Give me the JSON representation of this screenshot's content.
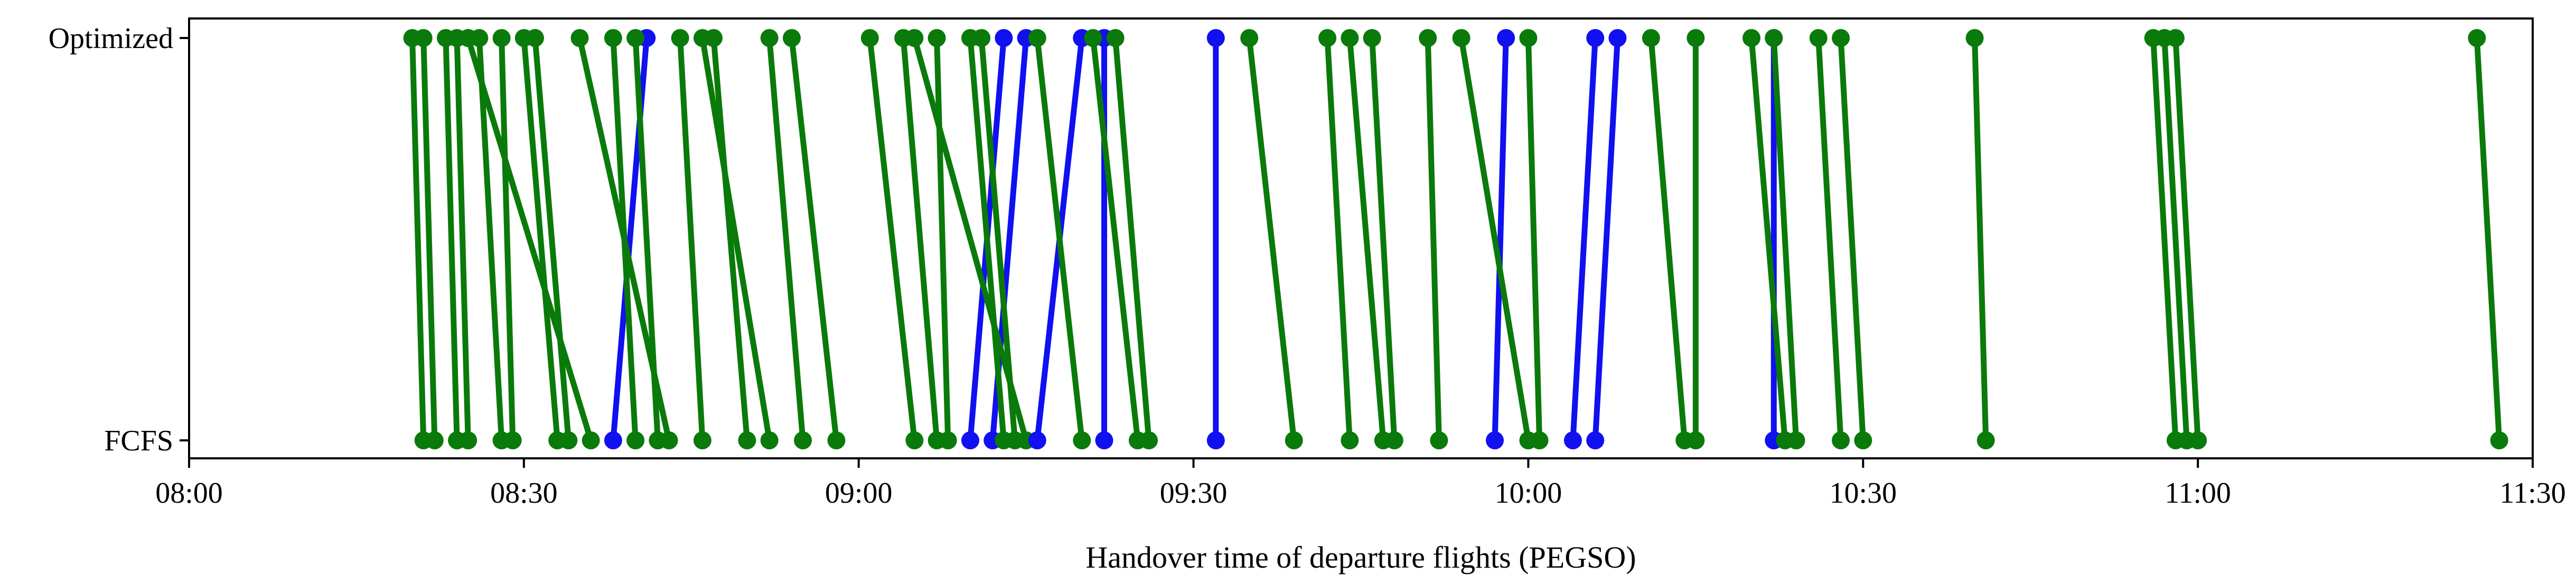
{
  "chart_data": {
    "type": "line",
    "title": "",
    "xlabel": "Handover time of departure flights (PEGSO)",
    "ylabel": "",
    "xlim": [
      "08:00",
      "11:30"
    ],
    "x_ticks": [
      "08:00",
      "08:30",
      "09:00",
      "09:30",
      "10:00",
      "10:30",
      "11:00",
      "11:30"
    ],
    "y_categories": [
      "FCFS",
      "Optimized"
    ],
    "grid": false,
    "legend": "none",
    "colors": {
      "unchanged_or_delayed": "#0a7a0a",
      "advanced": "#1010f0"
    },
    "note_encoding": "each flight is a segment from its FCFS handover time to its Optimized handover time; blue segments move earlier",
    "flights": [
      {
        "fcfs": "08:21",
        "optimized": "08:20",
        "color": "green"
      },
      {
        "fcfs": "08:22",
        "optimized": "08:21",
        "color": "green"
      },
      {
        "fcfs": "08:24",
        "optimized": "08:23",
        "color": "green"
      },
      {
        "fcfs": "08:25",
        "optimized": "08:24",
        "color": "green"
      },
      {
        "fcfs": "08:28",
        "optimized": "08:26",
        "color": "green"
      },
      {
        "fcfs": "08:29",
        "optimized": "08:28",
        "color": "green"
      },
      {
        "fcfs": "08:33",
        "optimized": "08:30",
        "color": "green"
      },
      {
        "fcfs": "08:34",
        "optimized": "08:31",
        "color": "green"
      },
      {
        "fcfs": "08:36",
        "optimized": "08:25",
        "color": "green"
      },
      {
        "fcfs": "08:38",
        "optimized": "08:41",
        "color": "blue"
      },
      {
        "fcfs": "08:40",
        "optimized": "08:38",
        "color": "green"
      },
      {
        "fcfs": "08:42",
        "optimized": "08:40",
        "color": "green"
      },
      {
        "fcfs": "08:43",
        "optimized": "08:35",
        "color": "green"
      },
      {
        "fcfs": "08:46",
        "optimized": "08:44",
        "color": "green"
      },
      {
        "fcfs": "08:50",
        "optimized": "08:47",
        "color": "green"
      },
      {
        "fcfs": "08:52",
        "optimized": "08:46",
        "color": "green"
      },
      {
        "fcfs": "08:55",
        "optimized": "08:52",
        "color": "green"
      },
      {
        "fcfs": "08:58",
        "optimized": "08:54",
        "color": "green"
      },
      {
        "fcfs": "09:05",
        "optimized": "09:01",
        "color": "green"
      },
      {
        "fcfs": "09:07",
        "optimized": "09:04",
        "color": "green"
      },
      {
        "fcfs": "09:08",
        "optimized": "09:07",
        "color": "green"
      },
      {
        "fcfs": "09:10",
        "optimized": "09:13",
        "color": "blue"
      },
      {
        "fcfs": "09:12",
        "optimized": "09:15",
        "color": "blue"
      },
      {
        "fcfs": "09:13",
        "optimized": "09:10",
        "color": "green"
      },
      {
        "fcfs": "09:14",
        "optimized": "09:11",
        "color": "green"
      },
      {
        "fcfs": "09:15",
        "optimized": "09:05",
        "color": "green"
      },
      {
        "fcfs": "09:16",
        "optimized": "09:20",
        "color": "blue"
      },
      {
        "fcfs": "09:20",
        "optimized": "09:16",
        "color": "green"
      },
      {
        "fcfs": "09:22",
        "optimized": "09:22",
        "color": "blue"
      },
      {
        "fcfs": "09:25",
        "optimized": "09:21",
        "color": "green"
      },
      {
        "fcfs": "09:26",
        "optimized": "09:23",
        "color": "green"
      },
      {
        "fcfs": "09:32",
        "optimized": "09:32",
        "color": "blue"
      },
      {
        "fcfs": "09:39",
        "optimized": "09:35",
        "color": "green"
      },
      {
        "fcfs": "09:44",
        "optimized": "09:42",
        "color": "green"
      },
      {
        "fcfs": "09:47",
        "optimized": "09:44",
        "color": "green"
      },
      {
        "fcfs": "09:48",
        "optimized": "09:46",
        "color": "green"
      },
      {
        "fcfs": "09:52",
        "optimized": "09:51",
        "color": "green"
      },
      {
        "fcfs": "09:57",
        "optimized": "09:58",
        "color": "blue"
      },
      {
        "fcfs": "10:00",
        "optimized": "09:54",
        "color": "green"
      },
      {
        "fcfs": "10:01",
        "optimized": "10:00",
        "color": "green"
      },
      {
        "fcfs": "10:04",
        "optimized": "10:06",
        "color": "blue"
      },
      {
        "fcfs": "10:06",
        "optimized": "10:08",
        "color": "blue"
      },
      {
        "fcfs": "10:14",
        "optimized": "10:11",
        "color": "green"
      },
      {
        "fcfs": "10:15",
        "optimized": "10:15",
        "color": "green"
      },
      {
        "fcfs": "10:22",
        "optimized": "10:22",
        "color": "blue"
      },
      {
        "fcfs": "10:23",
        "optimized": "10:20",
        "color": "green"
      },
      {
        "fcfs": "10:24",
        "optimized": "10:22",
        "color": "green"
      },
      {
        "fcfs": "10:28",
        "optimized": "10:26",
        "color": "green"
      },
      {
        "fcfs": "10:30",
        "optimized": "10:28",
        "color": "green"
      },
      {
        "fcfs": "10:41",
        "optimized": "10:40",
        "color": "green"
      },
      {
        "fcfs": "10:58",
        "optimized": "10:56",
        "color": "green"
      },
      {
        "fcfs": "10:59",
        "optimized": "10:57",
        "color": "green"
      },
      {
        "fcfs": "11:00",
        "optimized": "10:58",
        "color": "green"
      },
      {
        "fcfs": "11:27",
        "optimized": "11:25",
        "color": "green"
      }
    ]
  }
}
